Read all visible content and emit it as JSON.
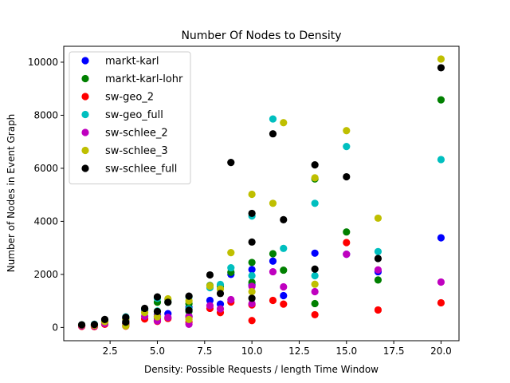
{
  "chart_data": {
    "type": "scatter",
    "title": "Number Of Nodes to Density",
    "xlabel": "Density: Possible Requests / length Time Window",
    "ylabel": "Number of Nodes in Event Graph",
    "xlim": [
      0.05,
      20.95
    ],
    "ylim": [
      -500,
      10600
    ],
    "xticks": [
      2.5,
      5.0,
      7.5,
      10.0,
      12.5,
      15.0,
      17.5,
      20.0
    ],
    "xtick_labels": [
      "2.5",
      "5.0",
      "7.5",
      "10.0",
      "12.5",
      "15.0",
      "17.5",
      "20.0"
    ],
    "yticks": [
      0,
      2000,
      4000,
      6000,
      8000,
      10000
    ],
    "ytick_labels": [
      "0",
      "2000",
      "4000",
      "6000",
      "8000",
      "10000"
    ],
    "grid": false,
    "legend_position": "top-left",
    "series": [
      {
        "name": "markt-karl",
        "color": "#0000ff",
        "points": [
          [
            1,
            80
          ],
          [
            1.67,
            90
          ],
          [
            2.22,
            210
          ],
          [
            3.33,
            270
          ],
          [
            3.33,
            160
          ],
          [
            4.33,
            650
          ],
          [
            5,
            480
          ],
          [
            5,
            330
          ],
          [
            5.56,
            520
          ],
          [
            6.67,
            760
          ],
          [
            6.67,
            420
          ],
          [
            7.78,
            1020
          ],
          [
            8.33,
            880
          ],
          [
            8.89,
            2000
          ],
          [
            10,
            2180
          ],
          [
            10,
            1600
          ],
          [
            11.11,
            2500
          ],
          [
            11.67,
            1200
          ],
          [
            13.33,
            2800
          ],
          [
            15,
            2760
          ],
          [
            16.67,
            2100
          ],
          [
            20,
            3380
          ]
        ]
      },
      {
        "name": "markt-karl-lohr",
        "color": "#008000",
        "points": [
          [
            1,
            80
          ],
          [
            1.67,
            90
          ],
          [
            2.22,
            240
          ],
          [
            3.33,
            330
          ],
          [
            3.33,
            150
          ],
          [
            4.33,
            700
          ],
          [
            5,
            950
          ],
          [
            5,
            400
          ],
          [
            5.56,
            950
          ],
          [
            6.67,
            900
          ],
          [
            6.67,
            600
          ],
          [
            7.78,
            1580
          ],
          [
            8.33,
            1550
          ],
          [
            8.89,
            2080
          ],
          [
            10,
            2450
          ],
          [
            10,
            1700
          ],
          [
            11.11,
            2780
          ],
          [
            11.67,
            2160
          ],
          [
            13.33,
            5600
          ],
          [
            13.33,
            900
          ],
          [
            15,
            3600
          ],
          [
            16.67,
            1790
          ],
          [
            20,
            8580
          ]
        ]
      },
      {
        "name": "sw-geo_2",
        "color": "#ff0000",
        "points": [
          [
            1,
            40
          ],
          [
            1.67,
            30
          ],
          [
            2.22,
            120
          ],
          [
            3.33,
            150
          ],
          [
            3.33,
            50
          ],
          [
            4.33,
            320
          ],
          [
            5,
            230
          ],
          [
            5,
            270
          ],
          [
            5.56,
            340
          ],
          [
            6.67,
            380
          ],
          [
            6.67,
            200
          ],
          [
            7.78,
            720
          ],
          [
            8.33,
            560
          ],
          [
            8.89,
            960
          ],
          [
            10,
            260
          ],
          [
            10,
            850
          ],
          [
            11.11,
            1020
          ],
          [
            11.67,
            880
          ],
          [
            13.33,
            480
          ],
          [
            15,
            3200
          ],
          [
            16.67,
            660
          ],
          [
            20,
            930
          ]
        ]
      },
      {
        "name": "sw-geo_full",
        "color": "#00bfbf",
        "points": [
          [
            1,
            100
          ],
          [
            1.67,
            120
          ],
          [
            2.22,
            280
          ],
          [
            3.33,
            400
          ],
          [
            3.33,
            220
          ],
          [
            4.33,
            700
          ],
          [
            5,
            1100
          ],
          [
            5,
            620
          ],
          [
            5.56,
            1050
          ],
          [
            6.67,
            1150
          ],
          [
            6.67,
            700
          ],
          [
            7.78,
            1500
          ],
          [
            8.33,
            1620
          ],
          [
            8.89,
            2250
          ],
          [
            10,
            4200
          ],
          [
            10,
            1950
          ],
          [
            11.11,
            7860
          ],
          [
            11.67,
            2980
          ],
          [
            13.33,
            4680
          ],
          [
            13.33,
            1950
          ],
          [
            15,
            6820
          ],
          [
            16.67,
            2860
          ],
          [
            20,
            6330
          ]
        ]
      },
      {
        "name": "sw-schlee_2",
        "color": "#bf00bf",
        "points": [
          [
            1,
            60
          ],
          [
            1.67,
            50
          ],
          [
            2.22,
            150
          ],
          [
            3.33,
            210
          ],
          [
            3.33,
            90
          ],
          [
            4.33,
            420
          ],
          [
            5,
            250
          ],
          [
            5,
            430
          ],
          [
            5.56,
            380
          ],
          [
            6.67,
            420
          ],
          [
            6.67,
            120
          ],
          [
            7.78,
            820
          ],
          [
            8.33,
            700
          ],
          [
            8.89,
            1050
          ],
          [
            10,
            1550
          ],
          [
            10,
            900
          ],
          [
            11.11,
            2100
          ],
          [
            11.67,
            1530
          ],
          [
            13.33,
            1350
          ],
          [
            15,
            2760
          ],
          [
            16.67,
            2170
          ],
          [
            20,
            1710
          ]
        ]
      },
      {
        "name": "sw-schlee_3",
        "color": "#bfbf00",
        "points": [
          [
            1,
            90
          ],
          [
            1.67,
            80
          ],
          [
            2.22,
            220
          ],
          [
            3.33,
            300
          ],
          [
            3.33,
            60
          ],
          [
            4.33,
            560
          ],
          [
            5,
            600
          ],
          [
            5,
            400
          ],
          [
            5.56,
            1080
          ],
          [
            6.67,
            1000
          ],
          [
            6.67,
            300
          ],
          [
            7.78,
            1560
          ],
          [
            8.33,
            1450
          ],
          [
            8.89,
            2820
          ],
          [
            10,
            5020
          ],
          [
            10,
            1350
          ],
          [
            11.11,
            4680
          ],
          [
            11.67,
            7720
          ],
          [
            13.33,
            5640
          ],
          [
            13.33,
            1630
          ],
          [
            15,
            7420
          ],
          [
            16.67,
            4120
          ],
          [
            20,
            10120
          ]
        ]
      },
      {
        "name": "sw-schlee_full",
        "color": "#000000",
        "points": [
          [
            1,
            100
          ],
          [
            1.67,
            110
          ],
          [
            2.22,
            300
          ],
          [
            3.33,
            380
          ],
          [
            3.33,
            200
          ],
          [
            4.33,
            720
          ],
          [
            5,
            1150
          ],
          [
            5,
            600
          ],
          [
            5.56,
            950
          ],
          [
            6.67,
            1180
          ],
          [
            6.67,
            650
          ],
          [
            7.78,
            1980
          ],
          [
            8.33,
            1280
          ],
          [
            8.89,
            6220
          ],
          [
            10,
            4300
          ],
          [
            10,
            3220
          ],
          [
            10,
            1100
          ],
          [
            11.11,
            7300
          ],
          [
            11.67,
            4060
          ],
          [
            13.33,
            6130
          ],
          [
            13.33,
            2200
          ],
          [
            15,
            5680
          ],
          [
            16.67,
            2600
          ],
          [
            20,
            9790
          ]
        ]
      }
    ]
  }
}
